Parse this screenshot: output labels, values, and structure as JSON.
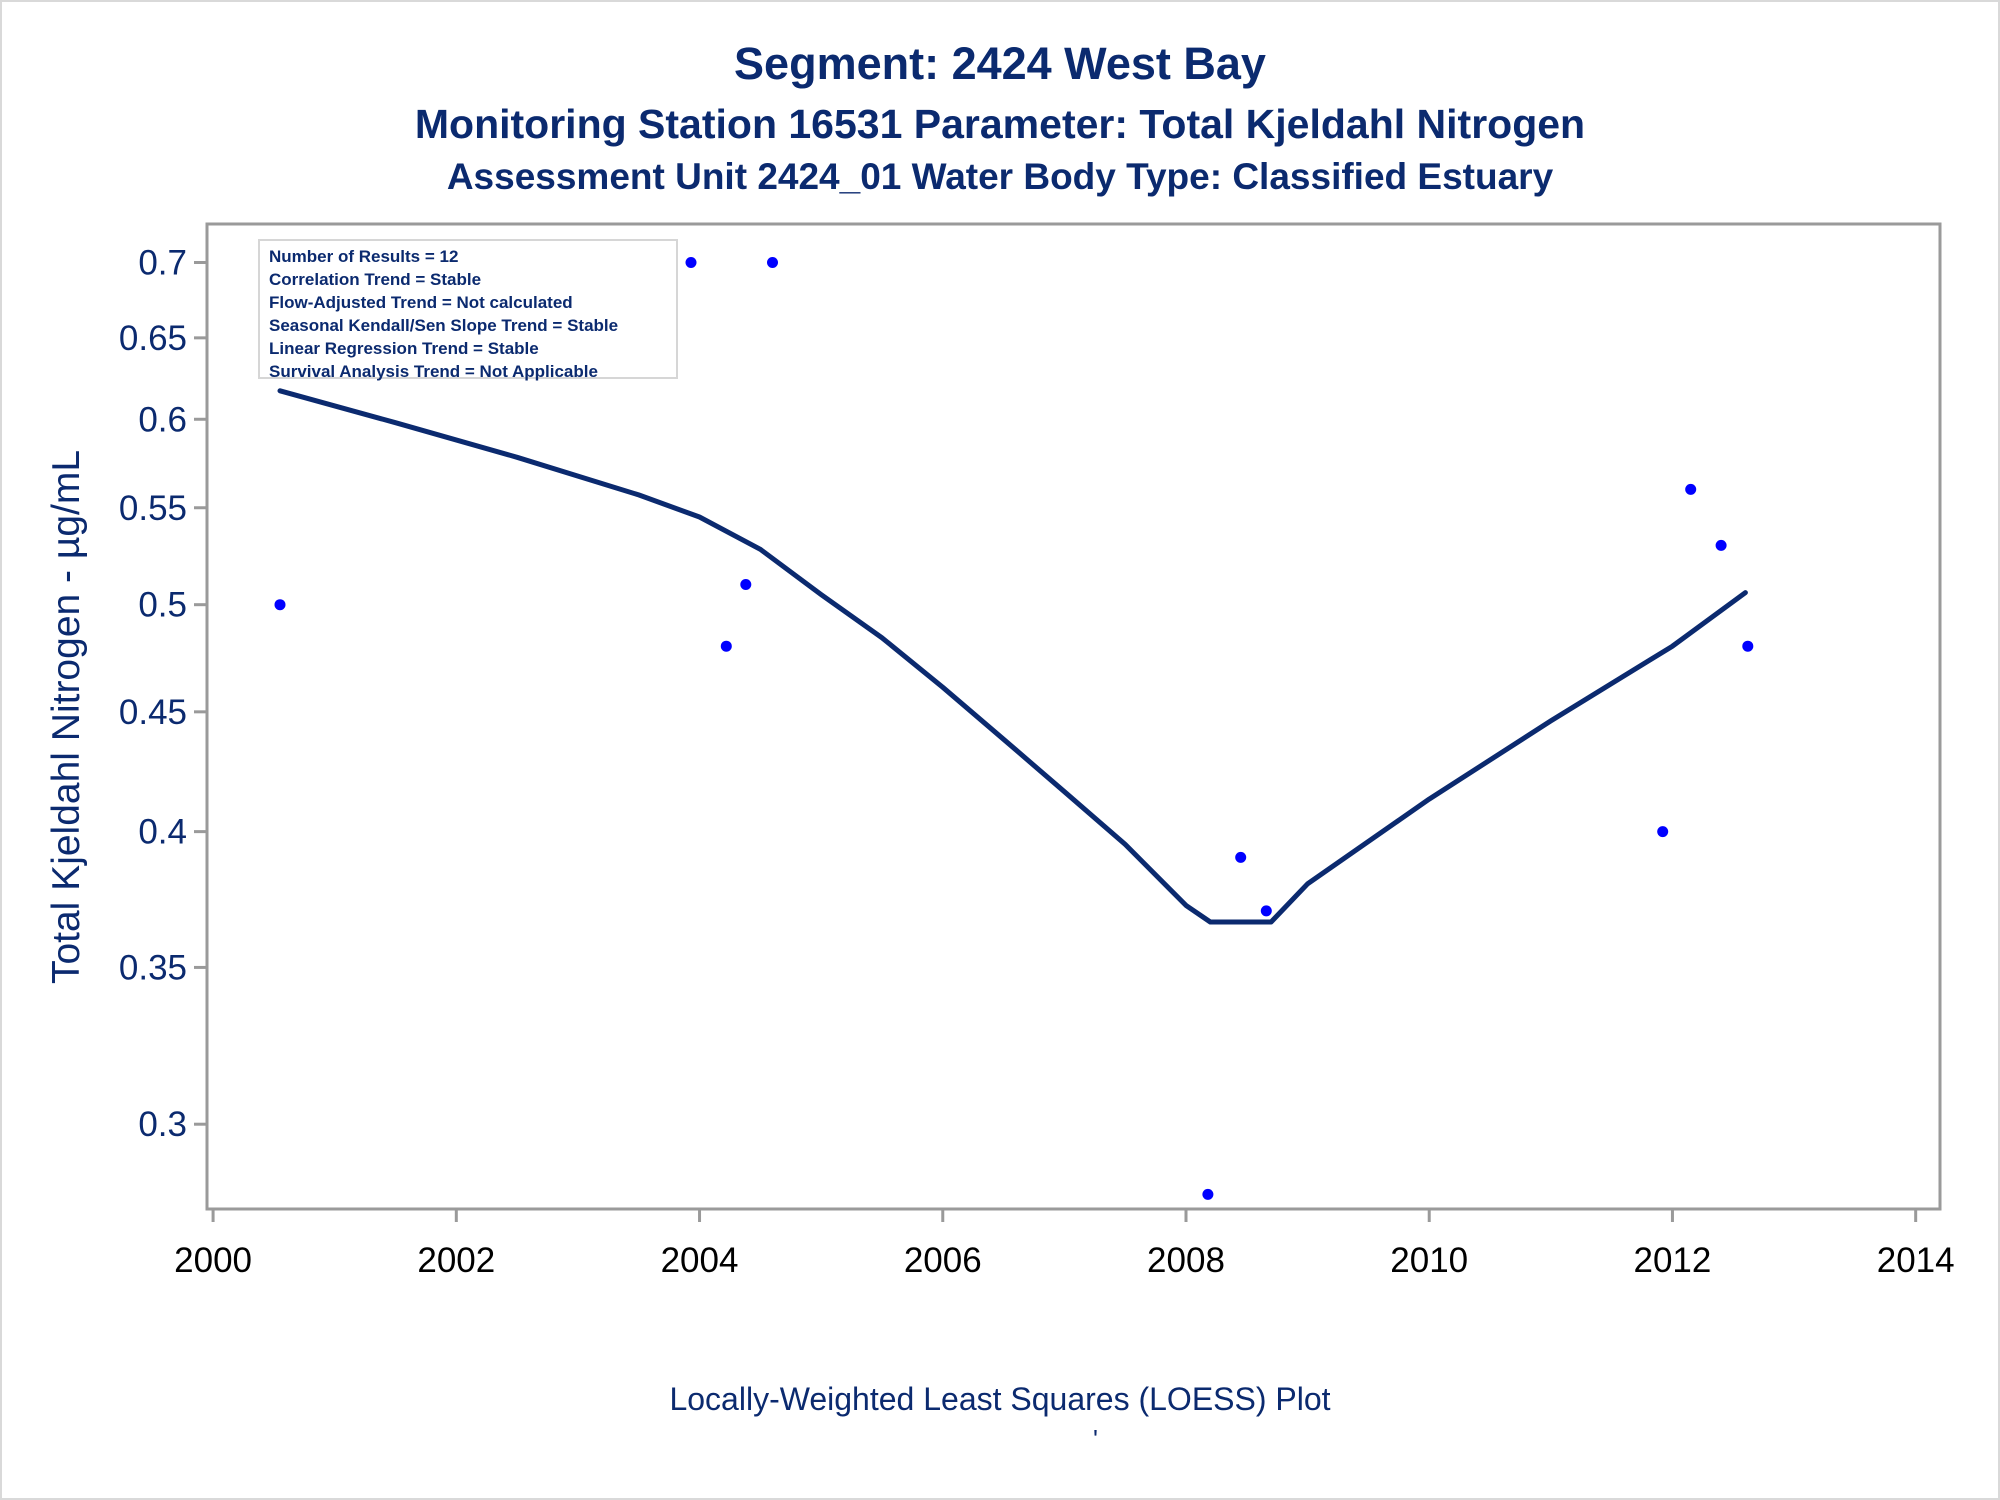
{
  "titles": {
    "line1": "Segment: 2424  West Bay",
    "line2": "Monitoring Station 16531 Parameter: Total Kjeldahl Nitrogen",
    "line3": "Assessment Unit 2424_01   Water Body Type: Classified Estuary"
  },
  "stats": [
    "Number of Results = 12",
    "Correlation Trend = Stable",
    "Flow-Adjusted Trend = Not calculated",
    "Seasonal Kendall/Sen Slope Trend = Stable",
    "Linear Regression Trend = Stable",
    "Survival Analysis Trend = Not Applicable"
  ],
  "footnote": "Locally-Weighted Least Squares (LOESS) Plot",
  "footnote_mark": "'",
  "colors": {
    "text": "#0b2a6f",
    "points": "#0000ff",
    "loess_line": "#0b2a6f",
    "axis": "#9a9a9a"
  },
  "chart_data": {
    "type": "scatter",
    "title": "Segment: 2424  West Bay",
    "ylabel": "Total Kjeldahl Nitrogen -  µg/mL",
    "xlabel": "",
    "yscale": "log",
    "xlim": [
      1999.95,
      2014.2
    ],
    "ylim": [
      0.276,
      0.727
    ],
    "x_ticks": [
      "2000",
      "2002",
      "2004",
      "2006",
      "2008",
      "2010",
      "2012",
      "2014"
    ],
    "y_ticks": [
      "0.3",
      "0.35",
      "0.4",
      "0.45",
      "0.5",
      "0.55",
      "0.6",
      "0.65",
      "0.7"
    ],
    "grid": false,
    "series": [
      {
        "kind": "points",
        "x": [
          2000.55,
          2003.93,
          2004.22,
          2004.38,
          2004.6,
          2008.18,
          2008.45,
          2008.66,
          2011.92,
          2012.15,
          2012.4,
          2012.62
        ],
        "y": [
          0.5,
          0.7,
          0.48,
          0.51,
          0.7,
          0.28,
          0.39,
          0.37,
          0.4,
          0.56,
          0.53,
          0.48
        ]
      },
      {
        "kind": "loess_line",
        "x": [
          2000.55,
          2001.5,
          2002.5,
          2003.5,
          2004.0,
          2004.5,
          2005.0,
          2005.5,
          2006.0,
          2006.5,
          2007.0,
          2007.5,
          2008.0,
          2008.2,
          2008.5,
          2008.7,
          2009.0,
          2010.0,
          2011.0,
          2012.0,
          2012.6
        ],
        "y": [
          0.617,
          0.598,
          0.578,
          0.557,
          0.545,
          0.528,
          0.505,
          0.484,
          0.461,
          0.438,
          0.416,
          0.395,
          0.372,
          0.366,
          0.366,
          0.366,
          0.38,
          0.413,
          0.446,
          0.48,
          0.506
        ]
      }
    ]
  }
}
